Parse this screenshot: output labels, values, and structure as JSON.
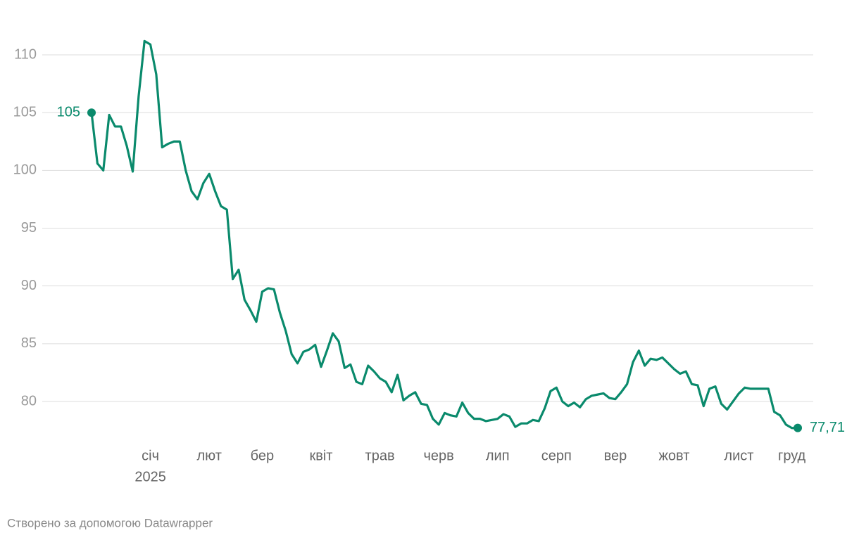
{
  "chart_data": {
    "type": "line",
    "categories": [
      null,
      null,
      null,
      null,
      null,
      null,
      null,
      null,
      null,
      null,
      "січ",
      null,
      null,
      null,
      null,
      null,
      null,
      null,
      null,
      null,
      "лют",
      null,
      null,
      null,
      null,
      null,
      null,
      null,
      null,
      "бер",
      null,
      null,
      null,
      null,
      null,
      null,
      null,
      null,
      null,
      "квіт",
      null,
      null,
      null,
      null,
      null,
      null,
      null,
      null,
      null,
      "трав",
      null,
      null,
      null,
      null,
      null,
      null,
      null,
      null,
      null,
      "черв",
      null,
      null,
      null,
      null,
      null,
      null,
      null,
      null,
      null,
      "лип",
      null,
      null,
      null,
      null,
      null,
      null,
      null,
      null,
      null,
      "серп",
      null,
      null,
      null,
      null,
      null,
      null,
      null,
      null,
      null,
      "вер",
      null,
      null,
      null,
      null,
      null,
      null,
      null,
      null,
      null,
      "жовт",
      null,
      null,
      null,
      null,
      null,
      null,
      null,
      null,
      null,
      null,
      "лист",
      null,
      null,
      null,
      null,
      null,
      null,
      null,
      null,
      "груд",
      null
    ],
    "x_sublabel": "2025",
    "values": [
      105,
      100.6,
      100.0,
      104.8,
      103.8,
      103.8,
      102.1,
      99.9,
      106.4,
      111.2,
      110.9,
      108.3,
      102.0,
      102.3,
      102.5,
      102.5,
      100.0,
      98.2,
      97.5,
      98.9,
      99.7,
      98.2,
      96.9,
      96.6,
      90.6,
      91.4,
      88.8,
      87.9,
      86.9,
      89.5,
      89.8,
      89.7,
      87.7,
      86.1,
      84.1,
      83.3,
      84.3,
      84.5,
      84.9,
      83.0,
      84.4,
      85.9,
      85.2,
      82.9,
      83.2,
      81.7,
      81.5,
      83.1,
      82.6,
      82.0,
      81.7,
      80.8,
      82.3,
      80.1,
      80.5,
      80.8,
      79.8,
      79.7,
      78.5,
      78.0,
      79.0,
      78.8,
      78.7,
      79.9,
      79.0,
      78.5,
      78.5,
      78.3,
      78.4,
      78.5,
      78.9,
      78.7,
      77.8,
      78.1,
      78.1,
      78.4,
      78.3,
      79.4,
      80.9,
      81.2,
      80.0,
      79.6,
      79.9,
      79.5,
      80.2,
      80.5,
      80.6,
      80.7,
      80.3,
      80.2,
      80.8,
      81.5,
      83.4,
      84.4,
      83.1,
      83.7,
      83.6,
      83.8,
      83.3,
      82.8,
      82.4,
      82.6,
      81.5,
      81.4,
      79.6,
      81.1,
      81.3,
      79.8,
      79.3,
      80.0,
      80.7,
      81.2,
      81.1,
      81.1,
      81.1,
      81.1,
      79.1,
      78.8,
      78.0,
      77.7,
      77.71
    ],
    "value_labels": [
      "105",
      null,
      null,
      null,
      null,
      null,
      null,
      null,
      null,
      null,
      null,
      null,
      null,
      null,
      null,
      null,
      null,
      null,
      null,
      null,
      null,
      null,
      null,
      null,
      null,
      null,
      null,
      null,
      null,
      null,
      null,
      null,
      null,
      null,
      null,
      null,
      null,
      null,
      null,
      null,
      null,
      null,
      null,
      null,
      null,
      null,
      null,
      null,
      null,
      null,
      null,
      null,
      null,
      null,
      null,
      null,
      null,
      null,
      null,
      null,
      null,
      null,
      null,
      null,
      null,
      null,
      null,
      null,
      null,
      null,
      null,
      null,
      null,
      null,
      null,
      null,
      null,
      null,
      null,
      null,
      null,
      null,
      null,
      null,
      null,
      null,
      null,
      null,
      null,
      null,
      null,
      null,
      null,
      null,
      null,
      null,
      null,
      null,
      null,
      null,
      null,
      null,
      null,
      null,
      null,
      null,
      null,
      null,
      null,
      null,
      null,
      null,
      null,
      null,
      null,
      null,
      null,
      null,
      null,
      null,
      "77,71"
    ],
    "color": "#0a8a6c",
    "ylim": [
      76.5,
      113.8
    ],
    "yticks": [
      80,
      85,
      90,
      95,
      100,
      105,
      110
    ],
    "grid": true,
    "footer": "Створено за допомогою Datawrapper"
  }
}
